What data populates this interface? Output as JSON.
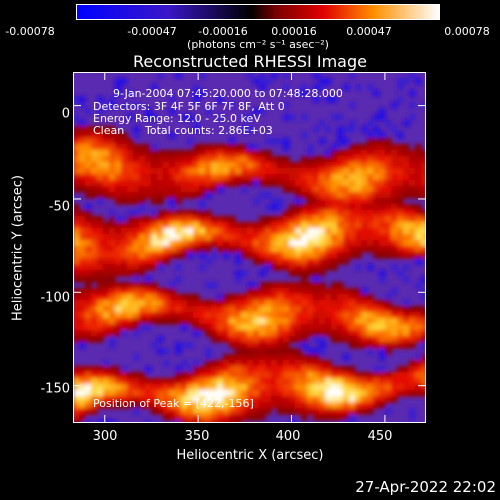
{
  "chart_data": {
    "type": "heatmap",
    "title": "Reconstructed RHESSI Image",
    "xlabel": "Heliocentric X (arcsec)",
    "ylabel": "Heliocentric Y (arcsec)",
    "xlim": [
      283,
      472
    ],
    "ylim": [
      -170,
      18
    ],
    "x_ticks": [
      300,
      350,
      400,
      450
    ],
    "y_ticks": [
      0,
      -50,
      -100,
      -150
    ],
    "colorbar": {
      "tick_labels": [
        "-0.00078",
        "-0.00047",
        "-0.00016",
        "0.00016",
        "0.00047",
        "0.00078"
      ],
      "unit_text": "(photons cm⁻² s⁻¹ asec⁻²)",
      "range": [
        -0.00078,
        0.00078
      ]
    },
    "bright_bands": [
      {
        "y": -36,
        "peak_value": 0.0006
      },
      {
        "y": -70,
        "peak_value": 0.00075
      },
      {
        "y": -112,
        "peak_value": 0.00065
      },
      {
        "y": -152,
        "peak_value": 0.00078
      }
    ],
    "dark_band_values": [
      -0.0004,
      -0.00055,
      -0.0005,
      -0.00045
    ],
    "colors": {
      "background": "#000000",
      "text": "#ffffff"
    }
  },
  "annotations": {
    "time_range": "9-Jan-2004 07:45:20.000 to 07:48:28.000",
    "detectors": "Detectors: 3F 4F 5F 6F 7F 8F, Att 0",
    "energy": "Energy Range: 12.0 - 25.0 keV",
    "method": "Clean",
    "counts": "Total counts: 2.86E+03",
    "peak": "Position of Peak = [422,-156]"
  },
  "timestamp": "27-Apr-2022 22:02"
}
